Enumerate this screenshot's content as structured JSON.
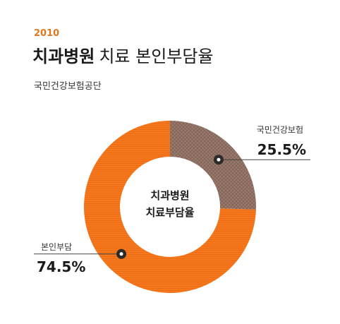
{
  "header": {
    "year": "2010",
    "title_bold": "치과병원",
    "title_light": "치료 본인부담율",
    "source": "국민건강보험공단"
  },
  "colors": {
    "accent": "#e0761e",
    "insurance": "#9a7b6e",
    "self_pay": "#f5781e"
  },
  "chart_data": {
    "type": "pie",
    "variant": "donut",
    "title": "치과병원 치료 본인부담율",
    "center_label": [
      "치과병원",
      "치료부담율"
    ],
    "slices": [
      {
        "label": "국민건강보험",
        "value": 25.5,
        "value_label": "25.5%",
        "color": "#9a7b6e",
        "pattern": "crosshatch"
      },
      {
        "label": "본인부담",
        "value": 74.5,
        "value_label": "74.5%",
        "color": "#f5781e",
        "pattern": "stripes"
      }
    ]
  }
}
